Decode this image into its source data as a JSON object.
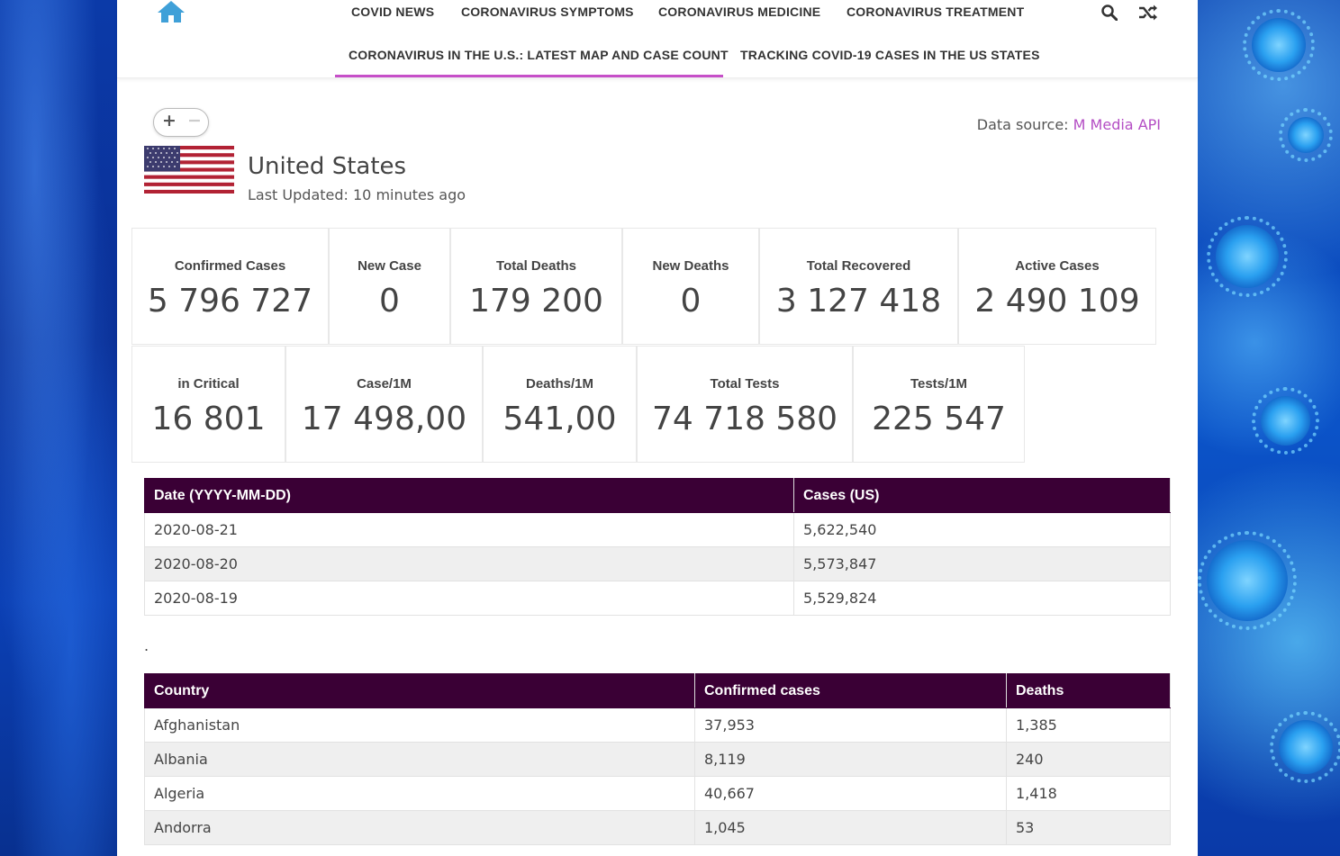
{
  "nav": {
    "row1": [
      "COVID NEWS",
      "CORONAVIRUS SYMPTOMS",
      "CORONAVIRUS MEDICINE",
      "CORONAVIRUS TREATMENT"
    ],
    "row2": [
      "CORONAVIRUS IN THE U.S.: LATEST MAP AND CASE COUNT",
      "TRACKING COVID-19 CASES IN THE US STATES"
    ],
    "icons": [
      "home-icon",
      "search-icon",
      "shuffle-icon"
    ]
  },
  "map_controls": {
    "zoom_in": "+",
    "zoom_out": "−"
  },
  "data_source": {
    "label": "Data source:",
    "link": "M Media API"
  },
  "country": {
    "name": "United States",
    "last_updated": "Last Updated: 10 minutes ago"
  },
  "stats_row1": [
    {
      "label": "Confirmed Cases",
      "value": "5 796 727"
    },
    {
      "label": "New Case",
      "value": "0"
    },
    {
      "label": "Total Deaths",
      "value": "179 200"
    },
    {
      "label": "New Deaths",
      "value": "0"
    },
    {
      "label": "Total Recovered",
      "value": "3 127 418"
    },
    {
      "label": "Active Cases",
      "value": "2 490 109"
    }
  ],
  "stats_row2": [
    {
      "label": "in Critical",
      "value": "16 801"
    },
    {
      "label": "Case/1M",
      "value": "17 498,00"
    },
    {
      "label": "Deaths/1M",
      "value": "541,00"
    },
    {
      "label": "Total Tests",
      "value": "74 718 580"
    },
    {
      "label": "Tests/1M",
      "value": "225 547"
    }
  ],
  "history_table": {
    "headers": [
      "Date (YYYY-MM-DD)",
      "Cases (US)"
    ],
    "rows": [
      [
        "2020-08-21",
        "5,622,540"
      ],
      [
        "2020-08-20",
        "5,573,847"
      ],
      [
        "2020-08-19",
        "5,529,824"
      ]
    ]
  },
  "separator": ".",
  "country_table": {
    "headers": [
      "Country",
      "Confirmed cases",
      "Deaths"
    ],
    "rows": [
      [
        "Afghanistan",
        "37,953",
        "1,385"
      ],
      [
        "Albania",
        "8,119",
        "240"
      ],
      [
        "Algeria",
        "40,667",
        "1,418"
      ],
      [
        "Andorra",
        "1,045",
        "53"
      ]
    ]
  },
  "colors": {
    "accent": "#c64fc8",
    "table_header": "#3a0035",
    "link": "#b44ec4"
  }
}
